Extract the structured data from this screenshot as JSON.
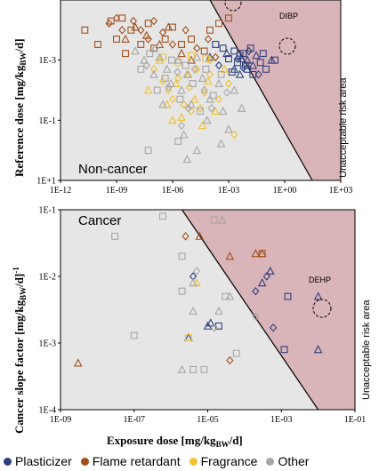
{
  "colors": {
    "Plasticizer": "#2f3f7f",
    "Flame retardant": "#a3501c",
    "Fragrance": "#f2c12e",
    "Other": "#a6a6a6",
    "plot_bg": "#e6e6e6",
    "risk_bg": "#d9b4b8"
  },
  "legend": {
    "items": [
      {
        "label": "Plasticizer",
        "color": "#2f3f7f"
      },
      {
        "label": "Flame retardant",
        "color": "#a3501c"
      },
      {
        "label": "Fragrance",
        "color": "#f2c12e"
      },
      {
        "label": "Other",
        "color": "#a6a6a6"
      }
    ]
  },
  "chart_data": [
    {
      "type": "scatter",
      "panel_title": "Non-cancer",
      "ylabel": "Reference dose [mg/kgBW/d]",
      "xlabel": "",
      "xscale": "log",
      "yscale": "log",
      "y_inverted": true,
      "xlim": [
        1e-12,
        1000
      ],
      "ylim": [
        1e-05,
        10
      ],
      "x_ticks": [
        "1E-12",
        "1E-09",
        "1E-06",
        "1E-03",
        "1E+00",
        "1E+03"
      ],
      "y_ticks": [
        "1E-3",
        "1E-1",
        "1E+1"
      ],
      "region_label": "Unacceptable risk area",
      "risk_boundary": [
        [
          0.0001,
          1e-05
        ],
        [
          30,
          10
        ]
      ],
      "annotations": [
        {
          "text": "DIBP",
          "x": 0.25,
          "y": 0.001
        }
      ],
      "grid": false,
      "series": [
        {
          "name": "Plasticizer",
          "marker": "square",
          "points": [
            [
              0.0002,
              0.0003
            ],
            [
              0.0005,
              0.0004
            ],
            [
              0.001,
              0.0009
            ],
            [
              0.002,
              0.0005
            ],
            [
              0.003,
              0.0012
            ],
            [
              0.004,
              0.0007
            ],
            [
              0.008,
              0.0015
            ],
            [
              0.01,
              0.002
            ],
            [
              0.015,
              0.0004
            ],
            [
              0.02,
              0.003
            ],
            [
              0.05,
              0.0012
            ],
            [
              0.07,
              0.0006
            ],
            [
              0.1,
              0.002
            ],
            [
              0.3,
              0.001
            ],
            [
              0.0015,
              0.0025
            ],
            [
              0.006,
              0.0006
            ]
          ]
        },
        {
          "name": "Plasticizer",
          "marker": "triangle",
          "points": [
            [
              0.0001,
              0.0008
            ],
            [
              0.0008,
              0.0006
            ],
            [
              0.002,
              0.002
            ],
            [
              0.005,
              0.0009
            ],
            [
              0.01,
              0.001
            ],
            [
              0.03,
              0.0007
            ],
            [
              0.2,
              0.001
            ],
            [
              0.004,
              0.003
            ],
            [
              0.02,
              0.0015
            ]
          ]
        },
        {
          "name": "Plasticizer",
          "marker": "diamond",
          "points": [
            [
              0.0003,
              0.0015
            ],
            [
              0.003,
              0.0009
            ],
            [
              0.006,
              0.0018
            ],
            [
              0.012,
              0.0005
            ],
            [
              0.04,
              0.003
            ]
          ]
        },
        {
          "name": "Flame retardant",
          "marker": "square",
          "points": [
            [
              2e-11,
              0.0001
            ],
            [
              1e-10,
              0.0003
            ],
            [
              5e-10,
              5e-05
            ],
            [
              2e-09,
              4e-05
            ],
            [
              1e-09,
              0.0002
            ],
            [
              6e-09,
              0.0001
            ],
            [
              2e-08,
              0.0003
            ],
            [
              5e-08,
              6e-05
            ],
            [
              3e-09,
              0.0006
            ],
            [
              1e-07,
              0.0004
            ],
            [
              4e-07,
              0.0002
            ],
            [
              1e-06,
              8e-05
            ],
            [
              3e-06,
              0.0003
            ],
            [
              1e-05,
              0.0002
            ],
            [
              5e-05,
              0.0005
            ],
            [
              0.0001,
              0.0001
            ],
            [
              0.0003,
              6e-05
            ],
            [
              0.001,
              4e-05
            ]
          ]
        },
        {
          "name": "Flame retardant",
          "marker": "diamond",
          "points": [
            [
              4e-10,
              6e-05
            ],
            [
              1e-09,
              4e-05
            ],
            [
              2e-09,
              0.0001
            ],
            [
              8e-09,
              5e-05
            ],
            [
              2e-08,
              0.0001
            ],
            [
              5e-08,
              0.0002
            ],
            [
              1e-07,
              5e-05
            ],
            [
              3e-07,
              0.00012
            ],
            [
              1e-06,
              0.0003
            ],
            [
              5e-06,
              0.0001
            ],
            [
              2e-05,
              0.0004
            ],
            [
              8e-05,
              0.0002
            ],
            [
              0.0002,
              0.0008
            ]
          ]
        },
        {
          "name": "Flame retardant",
          "marker": "triangle",
          "points": [
            [
              3e-09,
              0.0002
            ],
            [
              1e-08,
              8e-05
            ],
            [
              4e-08,
              0.00015
            ],
            [
              2e-07,
              0.0003
            ],
            [
              6e-07,
              8e-05
            ],
            [
              3e-06,
              0.0006
            ],
            [
              1e-05,
              0.001
            ]
          ]
        },
        {
          "name": "Fragrance",
          "marker": "diamond",
          "points": [
            [
              1e-07,
              0.002
            ],
            [
              3e-07,
              0.005
            ],
            [
              6e-07,
              0.01
            ],
            [
              1e-06,
              0.02
            ],
            [
              2e-06,
              0.004
            ],
            [
              4e-06,
              0.03
            ],
            [
              8e-06,
              0.008
            ],
            [
              1e-05,
              0.05
            ],
            [
              2e-05,
              0.002
            ],
            [
              5e-05,
              0.012
            ],
            [
              0.0001,
              0.003
            ],
            [
              0.0003,
              0.02
            ],
            [
              0.001,
              0.006
            ],
            [
              0.0001,
              0.001
            ],
            [
              0.002,
              0.3
            ],
            [
              3e-05,
              0.04
            ]
          ]
        },
        {
          "name": "Fragrance",
          "marker": "triangle",
          "points": [
            [
              5e-08,
              0.01
            ],
            [
              2e-07,
              0.001
            ],
            [
              5e-07,
              0.03
            ],
            [
              1.5e-06,
              0.006
            ],
            [
              3e-06,
              0.08
            ],
            [
              7e-06,
              0.003
            ],
            [
              1.5e-05,
              0.02
            ],
            [
              4e-05,
              0.15
            ],
            [
              8e-05,
              0.005
            ],
            [
              0.0002,
              0.05
            ],
            [
              0.0006,
              0.002
            ],
            [
              1e-06,
              0.1
            ]
          ]
        },
        {
          "name": "Fragrance",
          "marker": "square",
          "points": [
            [
              3e-07,
              0.0008
            ],
            [
              2e-06,
              0.0012
            ],
            [
              1e-05,
              0.0007
            ],
            [
              6e-05,
              0.0009
            ]
          ]
        },
        {
          "name": "Other",
          "marker": "triangle",
          "points": [
            [
              1e-08,
              0.0005
            ],
            [
              3e-08,
              0.001
            ],
            [
              1e-07,
              0.003
            ],
            [
              2e-07,
              0.0008
            ],
            [
              5e-07,
              0.002
            ],
            [
              8e-07,
              0.006
            ],
            [
              2e-06,
              0.001
            ],
            [
              3e-06,
              0.01
            ],
            [
              6e-06,
              0.003
            ],
            [
              1e-05,
              0.03
            ],
            [
              2e-05,
              0.0008
            ],
            [
              4e-05,
              0.004
            ],
            [
              7e-05,
              0.1
            ],
            [
              0.0001,
              0.02
            ],
            [
              0.0003,
              0.006
            ],
            [
              0.0005,
              0.05
            ],
            [
              0.001,
              0.2
            ],
            [
              0.002,
              0.01
            ],
            [
              0.005,
              0.04
            ],
            [
              3e-07,
              0.03
            ],
            [
              4e-06,
              0.3
            ],
            [
              2e-05,
              1
            ],
            [
              6e-06,
              2
            ],
            [
              0.0004,
              0.6
            ]
          ]
        },
        {
          "name": "Other",
          "marker": "square",
          "points": [
            [
              2e-08,
              0.002
            ],
            [
              6e-08,
              0.0006
            ],
            [
              1.5e-07,
              0.01
            ],
            [
              4e-07,
              0.004
            ],
            [
              9e-07,
              0.001
            ],
            [
              2.5e-06,
              0.02
            ],
            [
              5e-06,
              0.0015
            ],
            [
              1.2e-05,
              0.006
            ],
            [
              3e-05,
              0.05
            ],
            [
              6e-05,
              0.002
            ],
            [
              0.00015,
              0.015
            ],
            [
              0.0004,
              0.003
            ],
            [
              5e-08,
              1
            ],
            [
              2e-06,
              0.5
            ]
          ]
        },
        {
          "name": "Other",
          "marker": "diamond",
          "points": [
            [
              4e-08,
              0.0015
            ],
            [
              1.2e-07,
              0.0004
            ],
            [
              6e-07,
              0.008
            ],
            [
              1.8e-06,
              0.0025
            ],
            [
              7e-06,
              0.04
            ],
            [
              1.5e-05,
              0.002
            ],
            [
              5e-05,
              0.01
            ],
            [
              0.00012,
              0.04
            ],
            [
              0.0008,
              0.012
            ],
            [
              3e-06,
              0.15
            ]
          ]
        }
      ]
    },
    {
      "type": "scatter",
      "panel_title": "Cancer",
      "ylabel": "Cancer slope factor [mg/kgBW/d]-1",
      "xlabel": "Exposure dose [mg/kgBW/d]",
      "xscale": "log",
      "yscale": "log",
      "xlim": [
        1e-09,
        0.1
      ],
      "ylim": [
        0.0001,
        0.1
      ],
      "x_ticks": [
        "1E-09",
        "1E-07",
        "1E-05",
        "1E-03",
        "1E-01"
      ],
      "y_ticks": [
        "1E-4",
        "1E-3",
        "1E-2",
        "1E-1"
      ],
      "region_label": "Unacceptable risk area",
      "risk_boundary": [
        [
          2e-06,
          0.1
        ],
        [
          0.01,
          0.0001
        ]
      ],
      "annotations": [
        {
          "text": "DEHP",
          "x": 0.01,
          "y": 0.005
        }
      ],
      "grid": false,
      "series": [
        {
          "name": "Plasticizer",
          "marker": "square",
          "points": [
            [
              0.0015,
              0.005
            ],
            [
              0.0012,
              0.0008
            ],
            [
              2e-05,
              0.0018
            ]
          ]
        },
        {
          "name": "Plasticizer",
          "marker": "triangle",
          "points": [
            [
              0.01,
              0.005
            ],
            [
              0.01,
              0.0008
            ],
            [
              0.0005,
              0.012
            ],
            [
              0.0003,
              0.008
            ],
            [
              1.2e-05,
              0.002
            ],
            [
              1e-05,
              0.0018
            ],
            [
              3e-06,
              0.0012
            ]
          ]
        },
        {
          "name": "Plasticizer",
          "marker": "diamond",
          "points": [
            [
              4e-06,
              0.01
            ],
            [
              0.0006,
              0.0017
            ],
            [
              0.0004,
              0.01
            ],
            [
              0.0002,
              0.006
            ]
          ]
        },
        {
          "name": "Flame retardant",
          "marker": "triangle",
          "points": [
            [
              6e-06,
              0.04
            ],
            [
              4e-05,
              0.02
            ],
            [
              0.0002,
              0.022
            ],
            [
              0.0003,
              0.022
            ],
            [
              3e-09,
              0.0005
            ]
          ]
        },
        {
          "name": "Flame retardant",
          "marker": "diamond",
          "points": [
            [
              2.5e-06,
              0.04
            ],
            [
              4e-05,
              0.00055
            ]
          ]
        },
        {
          "name": "Flame retardant",
          "marker": "square",
          "points": [
            [
              0.0003,
              0.022
            ]
          ]
        },
        {
          "name": "Fragrance",
          "marker": "square",
          "points": [
            [
              3e-06,
              0.0012
            ]
          ]
        },
        {
          "name": "Fragrance",
          "marker": "triangle",
          "points": [
            [
              5e-06,
              0.008
            ]
          ]
        },
        {
          "name": "Other",
          "marker": "square",
          "points": [
            [
              3e-08,
              0.04
            ],
            [
              1e-07,
              0.0013
            ],
            [
              6e-07,
              0.08
            ],
            [
              2e-06,
              0.02
            ],
            [
              4e-06,
              0.0004
            ],
            [
              8e-06,
              0.0004
            ],
            [
              3e-05,
              0.005
            ],
            [
              6e-05,
              0.0007
            ],
            [
              1.5e-05,
              0.07
            ],
            [
              2e-06,
              0.006
            ]
          ]
        },
        {
          "name": "Other",
          "marker": "triangle",
          "points": [
            [
              2e-06,
              0.0004
            ],
            [
              4e-06,
              0.003
            ],
            [
              4e-06,
              0.008
            ],
            [
              2e-05,
              0.003
            ],
            [
              4e-05,
              0.005
            ],
            [
              2.5e-05,
              0.07
            ]
          ]
        },
        {
          "name": "Other",
          "marker": "diamond",
          "points": [
            [
              5e-06,
              0.012
            ],
            [
              1.5e-05,
              0.0017
            ],
            [
              0.0002,
              0.0025
            ]
          ]
        }
      ]
    }
  ]
}
